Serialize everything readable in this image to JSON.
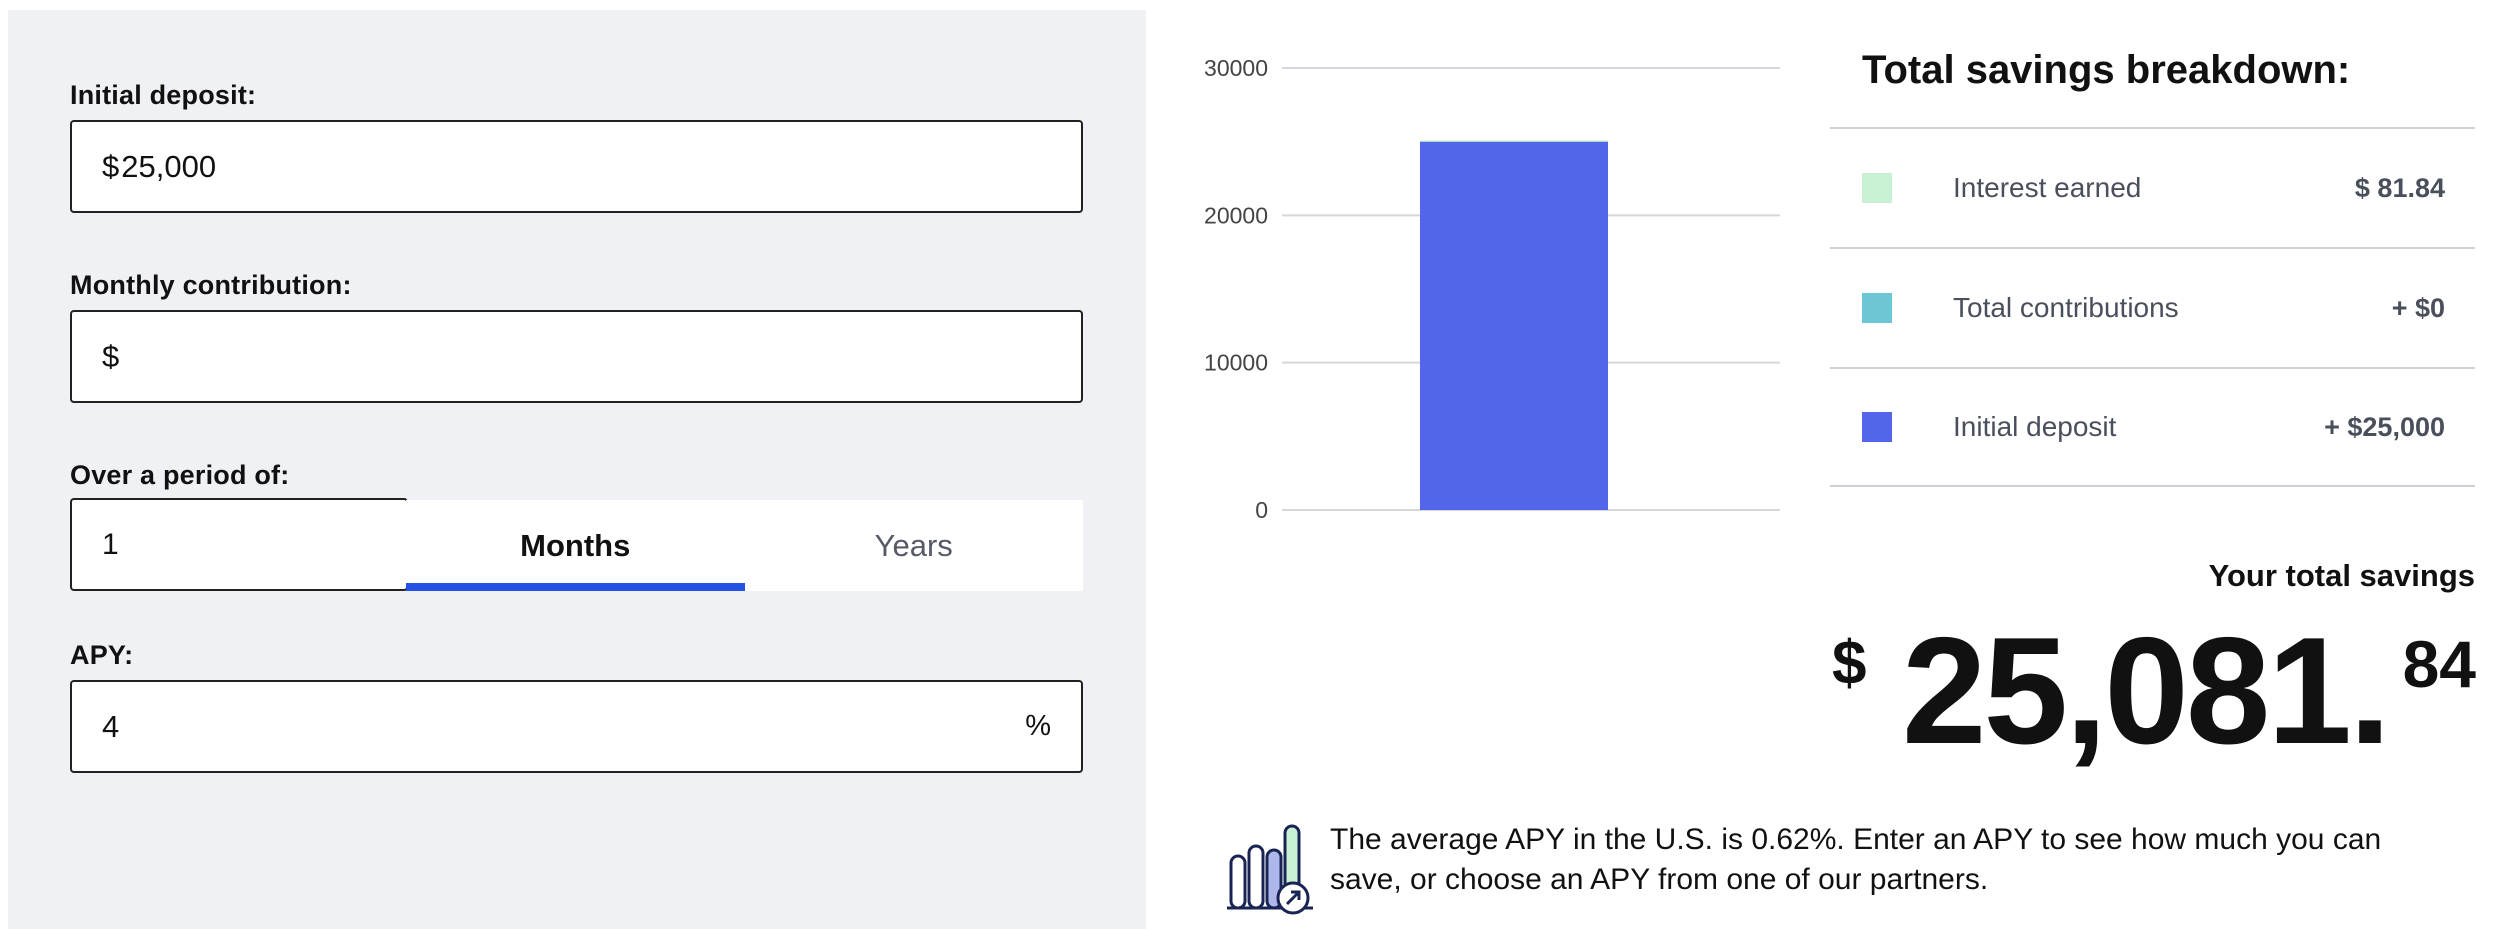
{
  "form": {
    "initial_deposit": {
      "label": "Initial deposit:",
      "prefix": "$",
      "value": "25,000"
    },
    "monthly_contribution": {
      "label": "Monthly contribution:",
      "prefix": "$",
      "value": ""
    },
    "period": {
      "label": "Over a period of:",
      "value": "1",
      "tabs": [
        {
          "label": "Months",
          "active": true
        },
        {
          "label": "Years",
          "active": false
        }
      ]
    },
    "apy": {
      "label": "APY:",
      "value": "4",
      "suffix": "%"
    }
  },
  "chart_data": {
    "type": "bar",
    "stacked": true,
    "yticks": [
      "30000",
      "20000",
      "10000",
      "0"
    ],
    "ylim": [
      0,
      30000
    ],
    "grid": true,
    "series": [
      {
        "name": "Initial deposit",
        "values": [
          25000
        ],
        "color": "#5366e9"
      },
      {
        "name": "Total contributions",
        "values": [
          0
        ],
        "color": "#6cc6d3"
      },
      {
        "name": "Interest earned",
        "values": [
          81.84
        ],
        "color": "#c8f0d2"
      }
    ]
  },
  "breakdown": {
    "title": "Total savings breakdown:",
    "items": [
      {
        "label": "Interest earned",
        "value": "$ 81.84",
        "color": "#c8f0d2"
      },
      {
        "label": "Total contributions",
        "value": "+ $0",
        "color": "#6cc6d3"
      },
      {
        "label": "Initial deposit",
        "value": "+ $25,000",
        "color": "#5366e9"
      }
    ]
  },
  "total": {
    "label": "Your total savings",
    "currency": "$",
    "main": "25,081.",
    "cents": "84"
  },
  "note": {
    "text": "The average APY in the U.S. is 0.62%. Enter an APY to see how much you can save, or choose an APY from one of our partners.",
    "icon": "growth-chart-icon"
  }
}
